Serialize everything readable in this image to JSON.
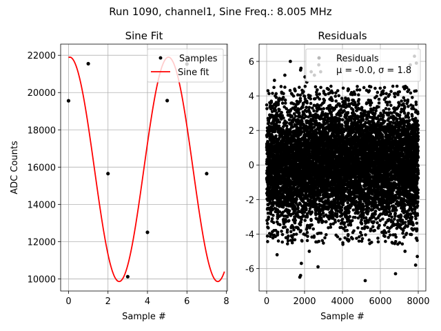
{
  "figure_title": "Run 1090, channel1, Sine Freq.: 8.005 MHz",
  "chart_data": [
    {
      "type": "line",
      "title": "Sine Fit",
      "xlabel": "Sample #",
      "ylabel": "ADC Counts",
      "xlim": [
        -0.4,
        8.05
      ],
      "ylim": [
        9350,
        22600
      ],
      "xticks": [
        0,
        2,
        4,
        6,
        8
      ],
      "yticks": [
        10000,
        12000,
        14000,
        16000,
        18000,
        20000,
        22000
      ],
      "grid": true,
      "legend_position": "top-right",
      "series": [
        {
          "name": "Samples",
          "kind": "scatter",
          "color": "#000000",
          "x": [
            0,
            1,
            2,
            3,
            4,
            5,
            6,
            7
          ],
          "y": [
            19560,
            21550,
            15650,
            10120,
            12500,
            19570,
            21530,
            15650
          ]
        },
        {
          "name": "Sine fit",
          "kind": "line",
          "color": "#ff0000",
          "model": {
            "offset": 15880,
            "amplitude": 6020,
            "samples_per_cycle": 4.997,
            "phase_rad": 1.4868,
            "x_range": [
              0,
              7.9
            ]
          }
        }
      ]
    },
    {
      "type": "scatter",
      "title": "Residuals",
      "xlabel": "Sample #",
      "ylabel": "",
      "xlim": [
        -400,
        8400
      ],
      "ylim": [
        -7.3,
        7.0
      ],
      "xticks": [
        0,
        2000,
        4000,
        6000,
        8000
      ],
      "yticks": [
        -6,
        -4,
        -2,
        0,
        2,
        4,
        6
      ],
      "grid": true,
      "legend_position": "top-right",
      "legend": [
        "Residuals",
        "μ = -0.0, σ = 1.8"
      ],
      "series": [
        {
          "name": "Residuals",
          "color": "#000000",
          "mean": -0.0,
          "std": 1.8,
          "x_range": [
            0,
            8000
          ],
          "point_count": 8000,
          "marked_outliers": {
            "x": [
              410,
              550,
              960,
              1250,
              1750,
              1790,
              1790,
              1810,
              1830,
              2020,
              2120,
              2250,
              2350,
              2520,
              2710,
              2750,
              2850,
              5200,
              6800,
              7300,
              7580,
              7800,
              7860,
              7900,
              7950
            ],
            "y": [
              4.9,
              -5.2,
              5.2,
              6.0,
              -6.5,
              -6.4,
              5.5,
              5.6,
              -5.7,
              5.1,
              4.8,
              -5.0,
              5.4,
              5.2,
              -5.9,
              5.8,
              5.4,
              -6.7,
              -6.3,
              -5.0,
              5.8,
              6.3,
              -5.8,
              5.9,
              -5.3
            ]
          }
        }
      ]
    }
  ]
}
